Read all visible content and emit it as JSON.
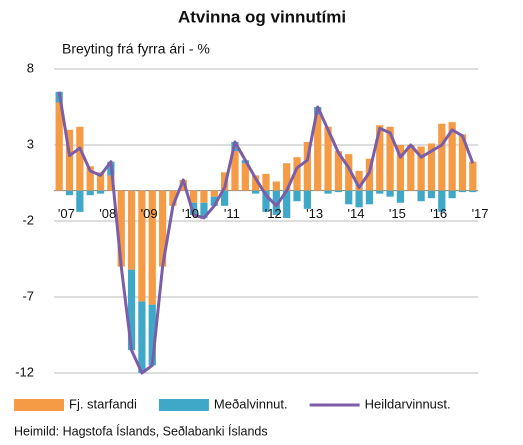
{
  "chart_data": {
    "type": "bar",
    "title": "Atvinna og vinnutími",
    "subtitle": "Breyting frá fyrra ári - %",
    "source": "Heimild: Hagstofa Íslands, Seðlabanki Íslands",
    "categories": [
      "'07",
      null,
      null,
      null,
      "'08",
      null,
      null,
      null,
      "'09",
      null,
      null,
      null,
      "'10",
      null,
      null,
      null,
      "'11",
      null,
      null,
      null,
      "'12",
      null,
      null,
      null,
      "'13",
      null,
      null,
      null,
      "'14",
      null,
      null,
      null,
      "'15",
      null,
      null,
      null,
      "'16",
      null,
      null,
      null,
      "'17"
    ],
    "series": [
      {
        "name": "Fj. starfandi",
        "color": "#f59a45",
        "values": [
          5.8,
          4.0,
          4.2,
          1.6,
          1.2,
          1.0,
          -5.0,
          -5.2,
          -7.3,
          -7.5,
          -5.0,
          -1.0,
          0.7,
          -0.8,
          -0.8,
          -0.4,
          1.2,
          2.6,
          1.8,
          1.0,
          1.1,
          0.6,
          1.8,
          2.2,
          3.2,
          5.0,
          4.2,
          2.6,
          2.4,
          1.3,
          2.1,
          4.3,
          4.2,
          3.0,
          3.0,
          2.9,
          3.1,
          4.4,
          4.5,
          3.7,
          1.9
        ]
      },
      {
        "name": "Meðalvinnut.",
        "color": "#3fa8c8",
        "values": [
          0.7,
          -0.3,
          -1.4,
          -0.3,
          -0.2,
          0.9,
          0,
          -5.3,
          -4.7,
          -4.0,
          0,
          0,
          0,
          -0.8,
          -1.0,
          -0.6,
          -1.0,
          0.6,
          0.2,
          -0.2,
          -1.4,
          -1.6,
          -1.8,
          -0.7,
          -1.2,
          0.5,
          -0.2,
          -0.1,
          -0.9,
          -1.1,
          -0.9,
          -0.2,
          -0.4,
          -0.8,
          0,
          -0.7,
          -0.5,
          -1.4,
          -0.5,
          -0.1,
          -0.1
        ]
      },
      {
        "name": "Heildarvinnust.",
        "color": "#7b5ea7",
        "type": "line",
        "values": [
          6.5,
          2.3,
          2.8,
          1.3,
          1.0,
          1.9,
          -5.0,
          -10.5,
          -12.0,
          -11.5,
          -5.0,
          -1.0,
          0.7,
          -1.6,
          -1.8,
          -1.0,
          0.2,
          3.2,
          2.0,
          0.8,
          -0.3,
          -1.0,
          0.0,
          1.5,
          2.0,
          5.5,
          4.0,
          2.5,
          1.5,
          0.2,
          1.2,
          4.1,
          3.8,
          2.2,
          3.0,
          2.2,
          2.6,
          3.0,
          4.0,
          3.6,
          1.8
        ]
      }
    ],
    "ylim": [
      -12,
      8
    ],
    "yticks": [
      8,
      3,
      -2,
      -7,
      -12
    ],
    "grid": true,
    "legend": "bottom"
  }
}
